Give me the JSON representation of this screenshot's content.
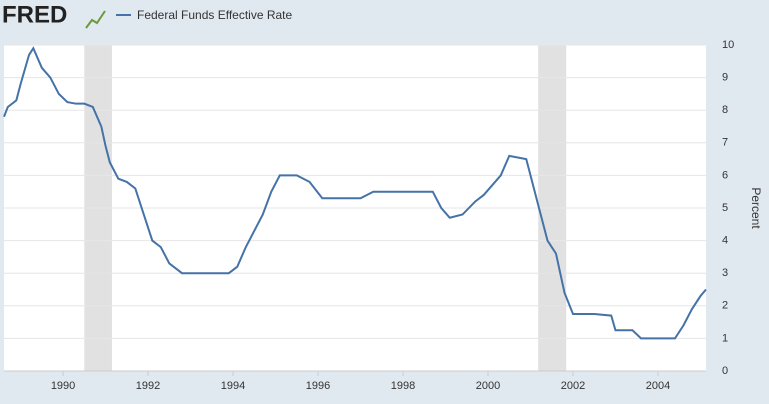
{
  "chart_data": {
    "type": "line",
    "logo": "FRED",
    "y_label": "Percent",
    "x": [
      1988.61,
      1988.7,
      1988.9,
      1989.0,
      1989.2,
      1989.3,
      1989.5,
      1989.7,
      1989.9,
      1990.1,
      1990.3,
      1990.5,
      1990.7,
      1990.9,
      1991.0,
      1991.1,
      1991.3,
      1991.5,
      1991.7,
      1991.9,
      1992.1,
      1992.3,
      1992.5,
      1992.8,
      1993.0,
      1993.5,
      1993.9,
      1994.1,
      1994.3,
      1994.5,
      1994.7,
      1994.9,
      1995.1,
      1995.5,
      1995.8,
      1996.1,
      1996.5,
      1997.0,
      1997.3,
      1997.8,
      1998.3,
      1998.7,
      1998.9,
      1999.1,
      1999.4,
      1999.7,
      1999.9,
      2000.1,
      2000.3,
      2000.5,
      2000.9,
      2001.0,
      2001.2,
      2001.4,
      2001.6,
      2001.8,
      2002.0,
      2002.5,
      2002.9,
      2003.0,
      2003.4,
      2003.6,
      2004.4,
      2004.6,
      2004.8,
      2005.0,
      2005.13
    ],
    "series": [
      {
        "name": "Federal Funds Effective Rate",
        "color": "#4572a7",
        "values": [
          7.8,
          8.1,
          8.3,
          8.8,
          9.7,
          9.9,
          9.3,
          9.0,
          8.5,
          8.25,
          8.2,
          8.2,
          8.1,
          7.5,
          6.9,
          6.4,
          5.9,
          5.8,
          5.6,
          4.8,
          4.0,
          3.8,
          3.3,
          3.0,
          3.0,
          3.0,
          3.0,
          3.2,
          3.8,
          4.3,
          4.8,
          5.5,
          6.0,
          6.0,
          5.8,
          5.3,
          5.3,
          5.3,
          5.5,
          5.5,
          5.5,
          5.5,
          5.0,
          4.7,
          4.8,
          5.2,
          5.4,
          5.7,
          6.0,
          6.6,
          6.5,
          6.0,
          5.0,
          4.0,
          3.6,
          2.4,
          1.75,
          1.75,
          1.7,
          1.25,
          1.25,
          1.0,
          1.0,
          1.4,
          1.9,
          2.3,
          2.5
        ]
      }
    ],
    "recessions": [
      [
        1990.5,
        1991.15
      ],
      [
        2001.18,
        2001.84
      ]
    ],
    "recession_color": "#e1e1e1",
    "xlim": [
      1988.61,
      2005.13
    ],
    "xticks": [
      1990,
      1992,
      1994,
      1996,
      1998,
      2000,
      2002,
      2004
    ],
    "ylim": [
      0,
      10
    ],
    "yticks": [
      0,
      1,
      2,
      3,
      4,
      5,
      6,
      7,
      8,
      9,
      10
    ],
    "grid": true
  }
}
